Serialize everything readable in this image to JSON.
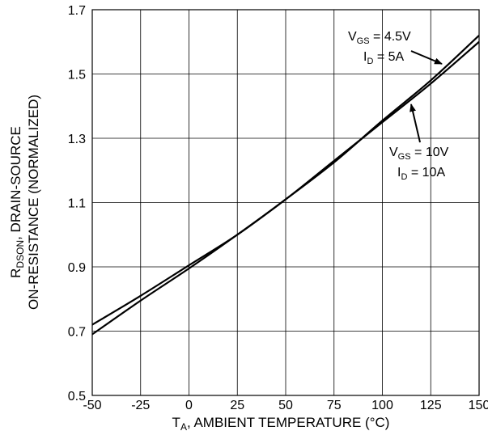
{
  "chart_data": {
    "type": "line",
    "title": "",
    "xlabel": {
      "main": "T",
      "sub": "A",
      "rest": ", AMBIENT TEMPERATURE (°C)"
    },
    "ylabel": {
      "line1_main": "R",
      "line1_sub": "DSON",
      "line1_rest": ", DRAIN-SOURCE",
      "line2": "ON-RESISTANCE (NORMALIZED)"
    },
    "xlim": [
      -50,
      150
    ],
    "ylim": [
      0.5,
      1.7
    ],
    "x_ticks": [
      -50,
      -25,
      0,
      25,
      50,
      75,
      100,
      125,
      150
    ],
    "x_tick_labels": [
      "-50",
      "-25",
      "0",
      "25",
      "50",
      "75",
      "100",
      "125",
      "150"
    ],
    "y_ticks": [
      0.5,
      0.7,
      0.9,
      1.1,
      1.3,
      1.5,
      1.7
    ],
    "y_tick_labels": [
      "0.5",
      "0.7",
      "0.9",
      "1.1",
      "1.3",
      "1.5",
      "1.7"
    ],
    "grid": true,
    "series": [
      {
        "x": [
          -50,
          -25,
          0,
          25,
          50,
          75,
          100,
          125,
          150
        ],
        "y": [
          0.72,
          0.81,
          0.905,
          1.0,
          1.11,
          1.225,
          1.355,
          1.48,
          1.62
        ]
      },
      {
        "x": [
          -50,
          -25,
          0,
          25,
          50,
          75,
          100,
          125,
          150
        ],
        "y": [
          0.69,
          0.795,
          0.895,
          1.0,
          1.11,
          1.23,
          1.35,
          1.47,
          1.6
        ]
      }
    ],
    "annotations": [
      {
        "lines": [
          {
            "main": "V",
            "sub": "GS",
            "rest": " = 4.5V"
          },
          {
            "main": "I",
            "sub": "D",
            "rest": " = 5A"
          }
        ]
      },
      {
        "lines": [
          {
            "main": "V",
            "sub": "GS",
            "rest": " = 10V"
          },
          {
            "main": "I",
            "sub": "D",
            "rest": " = 10A"
          }
        ]
      }
    ]
  }
}
